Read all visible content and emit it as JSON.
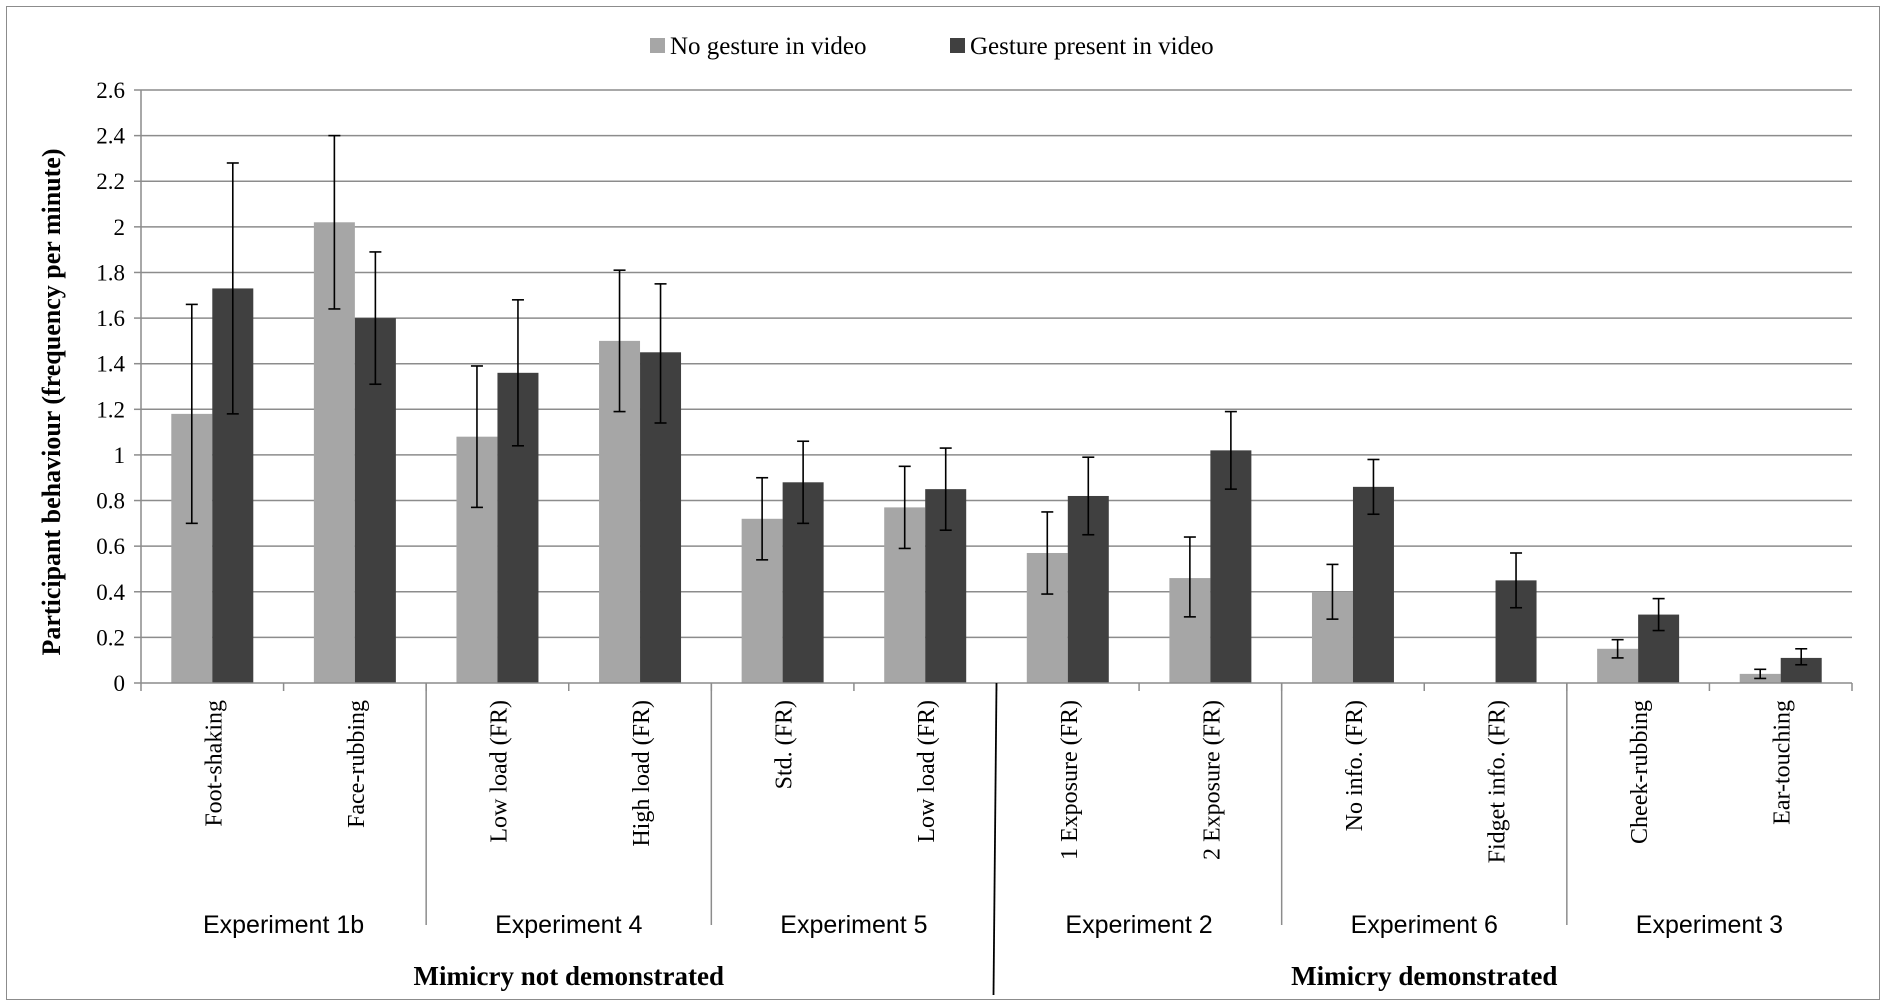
{
  "chart_data": {
    "type": "bar",
    "ylabel": "Participant behaviour (frequency per minute)",
    "ylim": [
      0,
      2.6
    ],
    "yticks": [
      "0",
      "0.2",
      "0.4",
      "0.6",
      "0.8",
      "1",
      "1.2",
      "1.4",
      "1.6",
      "1.8",
      "2",
      "2.2",
      "2.4",
      "2.6"
    ],
    "grid": true,
    "legend_position": "top-center",
    "categories": [
      "Foot-shaking",
      "Face-rubbing",
      "Low load (FR)",
      "High load (FR)",
      "Std. (FR)",
      "Low load (FR)",
      "1 Exposure (FR)",
      "2 Exposure (FR)",
      "No info. (FR)",
      "Fidget info. (FR)",
      "Cheek-rubbing",
      "Ear-touching"
    ],
    "series": [
      {
        "name": "No gesture in video",
        "color": "#a6a6a6",
        "values": [
          1.18,
          2.02,
          1.08,
          1.5,
          0.72,
          0.77,
          0.57,
          0.46,
          0.4,
          0.0,
          0.15,
          0.04
        ],
        "err_low": [
          0.7,
          1.64,
          0.77,
          1.19,
          0.54,
          0.59,
          0.39,
          0.29,
          0.28,
          0.0,
          0.11,
          0.02
        ],
        "err_high": [
          1.66,
          2.4,
          1.39,
          1.81,
          0.9,
          0.95,
          0.75,
          0.64,
          0.52,
          0.0,
          0.19,
          0.06
        ]
      },
      {
        "name": "Gesture present in video",
        "color": "#404040",
        "values": [
          1.73,
          1.6,
          1.36,
          1.45,
          0.88,
          0.85,
          0.82,
          1.02,
          0.86,
          0.45,
          0.3,
          0.11
        ],
        "err_low": [
          1.18,
          1.31,
          1.04,
          1.14,
          0.7,
          0.67,
          0.65,
          0.85,
          0.74,
          0.33,
          0.23,
          0.08
        ],
        "err_high": [
          2.28,
          1.89,
          1.68,
          1.75,
          1.06,
          1.03,
          0.99,
          1.19,
          0.98,
          0.57,
          0.37,
          0.15
        ]
      }
    ],
    "groups": [
      {
        "label": "Experiment 1b",
        "start": 0,
        "end": 2
      },
      {
        "label": "Experiment 4",
        "start": 2,
        "end": 4
      },
      {
        "label": "Experiment 5",
        "start": 4,
        "end": 6
      },
      {
        "label": "Experiment 2",
        "start": 6,
        "end": 8
      },
      {
        "label": "Experiment 6",
        "start": 8,
        "end": 10
      },
      {
        "label": "Experiment 3",
        "start": 10,
        "end": 12
      }
    ],
    "supergroups": [
      {
        "label": "Mimicry not demonstrated",
        "start": 0,
        "end": 6
      },
      {
        "label": "Mimicry demonstrated",
        "start": 6,
        "end": 12
      }
    ]
  }
}
